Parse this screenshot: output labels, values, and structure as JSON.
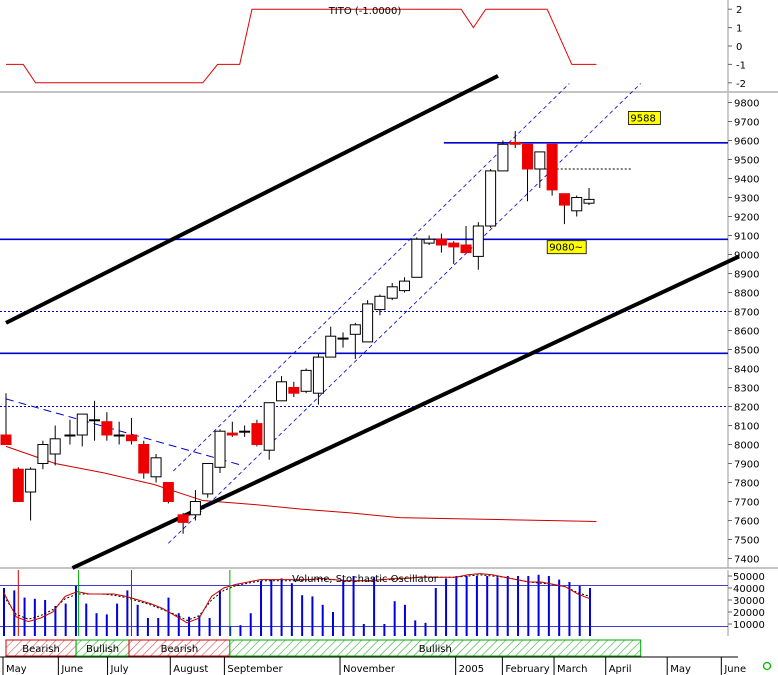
{
  "chart_data": {
    "type": "candlestick",
    "panels": {
      "indicator": {
        "label": "TITO (-1.0000)",
        "yticks": [
          "2",
          "1",
          "0",
          "-1",
          "-2"
        ],
        "ylim": [
          -2.5,
          2.5
        ],
        "color": "#e00000",
        "series": [
          {
            "x": 0.0,
            "y": -1
          },
          {
            "x": 0.7,
            "y": -1
          },
          {
            "x": 1.2,
            "y": -2
          },
          {
            "x": 8.0,
            "y": -2
          },
          {
            "x": 8.6,
            "y": -1
          },
          {
            "x": 9.5,
            "y": -1
          },
          {
            "x": 10.0,
            "y": 2
          },
          {
            "x": 18.5,
            "y": 2
          },
          {
            "x": 19.0,
            "y": 1
          },
          {
            "x": 19.5,
            "y": 2
          },
          {
            "x": 22.0,
            "y": 2
          },
          {
            "x": 23.0,
            "y": -1
          },
          {
            "x": 24.0,
            "y": -1
          }
        ]
      },
      "price": {
        "ylim": [
          7350,
          9850
        ],
        "yticks": [
          "9800",
          "9700",
          "9600",
          "9500",
          "9400",
          "9300",
          "9200",
          "9100",
          "9000",
          "8900",
          "8800",
          "8700",
          "8600",
          "8500",
          "8400",
          "8300",
          "8200",
          "8100",
          "8000",
          "7900",
          "7800",
          "7700",
          "7600",
          "7500",
          "7400"
        ],
        "up_color": "#ffffff",
        "down_color": "#ee0000",
        "candles": [
          {
            "x": 0,
            "o": 8050,
            "h": 8270,
            "l": 8000,
            "c": 8000
          },
          {
            "x": 0.5,
            "o": 7870,
            "h": 7880,
            "l": 7700,
            "c": 7700
          },
          {
            "x": 1,
            "o": 7750,
            "h": 7880,
            "l": 7600,
            "c": 7870
          },
          {
            "x": 1.5,
            "o": 7900,
            "h": 8020,
            "l": 7870,
            "c": 8000
          },
          {
            "x": 2,
            "o": 7950,
            "h": 8100,
            "l": 7890,
            "c": 8030
          },
          {
            "x": 2.6,
            "o": 8050,
            "h": 8130,
            "l": 8000,
            "c": 8050
          },
          {
            "x": 3.1,
            "o": 8050,
            "h": 8160,
            "l": 7990,
            "c": 8160
          },
          {
            "x": 3.6,
            "o": 8130,
            "h": 8230,
            "l": 8020,
            "c": 8130
          },
          {
            "x": 4.1,
            "o": 8120,
            "h": 8170,
            "l": 8020,
            "c": 8050
          },
          {
            "x": 4.6,
            "o": 8050,
            "h": 8120,
            "l": 8000,
            "c": 8050
          },
          {
            "x": 5.1,
            "o": 8050,
            "h": 8140,
            "l": 8000,
            "c": 8020
          },
          {
            "x": 5.6,
            "o": 8000,
            "h": 8020,
            "l": 7820,
            "c": 7850
          },
          {
            "x": 6.1,
            "o": 7830,
            "h": 7950,
            "l": 7800,
            "c": 7930
          },
          {
            "x": 6.6,
            "o": 7800,
            "h": 7800,
            "l": 7690,
            "c": 7700
          },
          {
            "x": 7.2,
            "o": 7630,
            "h": 7640,
            "l": 7530,
            "c": 7590
          },
          {
            "x": 7.7,
            "o": 7630,
            "h": 7760,
            "l": 7600,
            "c": 7700
          },
          {
            "x": 8.2,
            "o": 7740,
            "h": 7900,
            "l": 7720,
            "c": 7900
          },
          {
            "x": 8.7,
            "o": 7880,
            "h": 8080,
            "l": 7850,
            "c": 8070
          },
          {
            "x": 9.2,
            "o": 8060,
            "h": 8120,
            "l": 8040,
            "c": 8050
          },
          {
            "x": 9.7,
            "o": 8070,
            "h": 8100,
            "l": 8040,
            "c": 8070
          },
          {
            "x": 10.2,
            "o": 8110,
            "h": 8130,
            "l": 7990,
            "c": 8000
          },
          {
            "x": 10.7,
            "o": 7970,
            "h": 8220,
            "l": 7920,
            "c": 8220
          },
          {
            "x": 11.2,
            "o": 8230,
            "h": 8360,
            "l": 8230,
            "c": 8330
          },
          {
            "x": 11.7,
            "o": 8300,
            "h": 8330,
            "l": 8250,
            "c": 8270
          },
          {
            "x": 12.2,
            "o": 8280,
            "h": 8400,
            "l": 8270,
            "c": 8390
          },
          {
            "x": 12.7,
            "o": 8270,
            "h": 8480,
            "l": 8210,
            "c": 8460
          },
          {
            "x": 13.2,
            "o": 8460,
            "h": 8620,
            "l": 8460,
            "c": 8570
          },
          {
            "x": 13.7,
            "o": 8560,
            "h": 8590,
            "l": 8510,
            "c": 8560
          },
          {
            "x": 14.2,
            "o": 8580,
            "h": 8640,
            "l": 8450,
            "c": 8630
          },
          {
            "x": 14.7,
            "o": 8540,
            "h": 8760,
            "l": 8540,
            "c": 8740
          },
          {
            "x": 15.2,
            "o": 8710,
            "h": 8790,
            "l": 8680,
            "c": 8780
          },
          {
            "x": 15.7,
            "o": 8770,
            "h": 8850,
            "l": 8760,
            "c": 8830
          },
          {
            "x": 16.2,
            "o": 8810,
            "h": 8880,
            "l": 8800,
            "c": 8860
          },
          {
            "x": 16.7,
            "o": 8880,
            "h": 9090,
            "l": 8880,
            "c": 9080
          },
          {
            "x": 17.2,
            "o": 9060,
            "h": 9100,
            "l": 9050,
            "c": 9080
          },
          {
            "x": 17.7,
            "o": 9080,
            "h": 9110,
            "l": 9010,
            "c": 9050
          },
          {
            "x": 18.2,
            "o": 9060,
            "h": 9070,
            "l": 8950,
            "c": 9040
          },
          {
            "x": 18.7,
            "o": 9050,
            "h": 9150,
            "l": 9010,
            "c": 9010
          },
          {
            "x": 19.2,
            "o": 8990,
            "h": 9170,
            "l": 8920,
            "c": 9150
          },
          {
            "x": 19.7,
            "o": 9150,
            "h": 9450,
            "l": 9140,
            "c": 9440
          },
          {
            "x": 20.2,
            "o": 9440,
            "h": 9600,
            "l": 9440,
            "c": 9580
          },
          {
            "x": 20.7,
            "o": 9590,
            "h": 9650,
            "l": 9560,
            "c": 9580
          },
          {
            "x": 21.2,
            "o": 9580,
            "h": 9580,
            "l": 9280,
            "c": 9450
          },
          {
            "x": 21.7,
            "o": 9450,
            "h": 9530,
            "l": 9350,
            "c": 9540
          },
          {
            "x": 22.2,
            "o": 9580,
            "h": 9580,
            "l": 9310,
            "c": 9340
          },
          {
            "x": 22.7,
            "o": 9320,
            "h": 9320,
            "l": 9160,
            "c": 9260
          },
          {
            "x": 23.2,
            "o": 9230,
            "h": 9310,
            "l": 9200,
            "c": 9300
          },
          {
            "x": 23.7,
            "o": 9270,
            "h": 9350,
            "l": 9260,
            "c": 9290
          }
        ],
        "horizontal_lines": [
          {
            "y": 9588,
            "style": "solid",
            "color": "#0000cc",
            "x_from": 17.8
          },
          {
            "y": 9080,
            "style": "solid",
            "color": "#0000cc"
          },
          {
            "y": 8480,
            "style": "solid",
            "color": "#0000cc"
          },
          {
            "y": 8700,
            "style": "dotted",
            "color": "#0000cc"
          },
          {
            "y": 8200,
            "style": "dotted",
            "color": "#0000cc"
          },
          {
            "y": 9450,
            "style": "dotted",
            "color": "#000000",
            "x_from": 21.9,
            "x_to": 25.4
          }
        ],
        "trend_lines": [
          {
            "from": [
              0,
              8640
            ],
            "to": [
              20,
              9940
            ],
            "color": "#000000",
            "style": "thick"
          },
          {
            "from": [
              2.7,
              7350
            ],
            "to": [
              29.8,
              8990
            ],
            "color": "#000000",
            "style": "thick"
          },
          {
            "from": [
              0,
              8240
            ],
            "to": [
              9.6,
              7890
            ],
            "color": "#0000cc",
            "style": "dashed"
          },
          {
            "from": [
              6.6,
              7480
            ],
            "to": [
              25.8,
              9900
            ],
            "color": "#0000cc",
            "style": "dashed-thin"
          },
          {
            "from": [
              6.8,
              7860
            ],
            "to": [
              22.9,
              9900
            ],
            "color": "#0000cc",
            "style": "dashed-thin"
          }
        ],
        "moving_average": {
          "color": "#cc0000",
          "points": [
            {
              "x": 0,
              "y": 7990
            },
            {
              "x": 2,
              "y": 7900
            },
            {
              "x": 4,
              "y": 7850
            },
            {
              "x": 6,
              "y": 7790
            },
            {
              "x": 8,
              "y": 7705
            },
            {
              "x": 10,
              "y": 7685
            },
            {
              "x": 12,
              "y": 7660
            },
            {
              "x": 14,
              "y": 7640
            },
            {
              "x": 16,
              "y": 7615
            },
            {
              "x": 18,
              "y": 7610
            },
            {
              "x": 20,
              "y": 7605
            },
            {
              "x": 22,
              "y": 7600
            },
            {
              "x": 24,
              "y": 7595
            }
          ]
        },
        "labels": [
          {
            "text": "9588",
            "x": 25.3,
            "y": 9700
          },
          {
            "text": "9080~",
            "x": 22,
            "y": 9020
          }
        ]
      },
      "volume": {
        "label": "Volume, Stochastic Oscillator",
        "yticks": [
          "50000",
          "40000",
          "30000",
          "20000",
          "10000"
        ],
        "ylim": [
          0,
          55000
        ],
        "ref_lines": [
          42000,
          8000
        ],
        "volumes": [
          40000,
          38000,
          32000,
          31000,
          30000,
          25000,
          27000,
          42000,
          27000,
          19000,
          18000,
          27000,
          38000,
          26000,
          15000,
          15000,
          32000,
          19000,
          16000,
          17000,
          15000,
          38000,
          8000,
          9000,
          19000,
          46000,
          47000,
          48000,
          44000,
          34000,
          33000,
          26000,
          20000,
          47000,
          50000,
          10000,
          49000,
          10000,
          29000,
          26000,
          13000,
          11000,
          40000,
          48000,
          50000,
          50000,
          50000,
          50000,
          49000,
          50000,
          50000,
          50000,
          51000,
          50000,
          47000,
          45000,
          42000,
          40000
        ],
        "stoch_k": [
          36000,
          16000,
          12000,
          15000,
          20000,
          33000,
          37000,
          35000,
          35000,
          35000,
          33000,
          30000,
          27000,
          23000,
          17000,
          11000,
          15000,
          33000,
          40000,
          43000,
          45000,
          47000,
          47000,
          47000,
          47000,
          47000,
          48000,
          47000,
          46000,
          46000,
          46000,
          47000,
          48000,
          48000,
          49000,
          49000,
          49000,
          49000,
          51000,
          52000,
          51000,
          49000,
          47000,
          45000,
          45000,
          43000,
          41000,
          35000,
          31000
        ],
        "stoch_d": [
          33000,
          18000,
          14000,
          17000,
          22000,
          31000,
          35000,
          35000,
          35000,
          34000,
          32000,
          29000,
          26000,
          22000,
          18000,
          13000,
          17000,
          30000,
          38000,
          42000,
          44000,
          46000,
          46000,
          46000,
          46000,
          47000,
          47000,
          47000,
          46000,
          46000,
          46000,
          47000,
          47000,
          48000,
          49000,
          49000,
          49000,
          49000,
          50000,
          51000,
          50000,
          49000,
          47000,
          45000,
          44000,
          43000,
          41000,
          36000,
          33000
        ]
      }
    },
    "phases": [
      {
        "label": "Bearish",
        "from": 0.0,
        "to": 2.85
      },
      {
        "label": "Bullish",
        "from": 2.85,
        "to": 5.0
      },
      {
        "label": "Bearish",
        "from": 5.0,
        "to": 9.1
      },
      {
        "label": "Bullish",
        "from": 9.1,
        "to": 25.8
      }
    ],
    "phase_lines": [
      {
        "x": 0.5,
        "color": "#cc0000"
      },
      {
        "x": 2.95,
        "color": "#00aa00"
      },
      {
        "x": 5.1,
        "color": "#cc0000"
      },
      {
        "x": 9.1,
        "color": "#00aa00"
      }
    ],
    "months": [
      {
        "label": "May",
        "x": 0.0
      },
      {
        "label": "June",
        "x": 2.25
      },
      {
        "label": "July",
        "x": 4.25
      },
      {
        "label": "August",
        "x": 6.8
      },
      {
        "label": "September",
        "x": 9.0
      },
      {
        "label": "November",
        "x": 13.7
      },
      {
        "label": "2005",
        "x": 18.4
      },
      {
        "label": "February",
        "x": 20.3
      },
      {
        "label": "March",
        "x": 22.4
      },
      {
        "label": "April",
        "x": 24.5
      },
      {
        "label": "May",
        "x": 27.0
      },
      {
        "label": "June",
        "x": 29.2
      }
    ]
  }
}
